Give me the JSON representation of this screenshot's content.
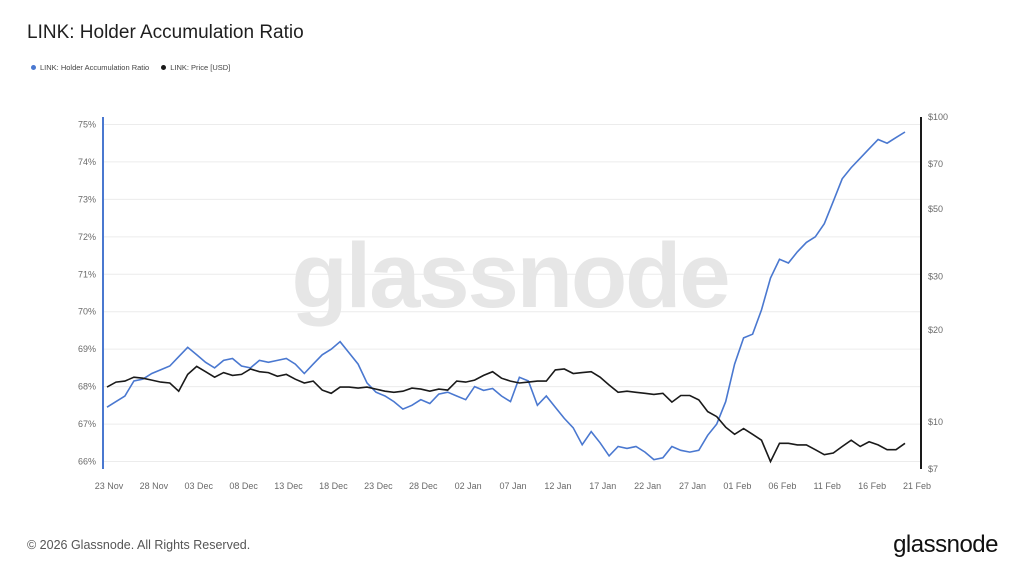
{
  "title": "LINK: Holder Accumulation Ratio",
  "footer": "© 2026 Glassnode. All Rights Reserved.",
  "brand": "glassnode",
  "watermark": "glassnode",
  "colors": {
    "ratio": "#4a78d0",
    "price": "#1a1a1a",
    "grid": "#ececec"
  },
  "chart_data": {
    "type": "line",
    "x_labels": [
      "23 Nov",
      "28 Nov",
      "03 Dec",
      "08 Dec",
      "13 Dec",
      "18 Dec",
      "23 Dec",
      "28 Dec",
      "02 Jan",
      "07 Jan",
      "12 Jan",
      "17 Jan",
      "22 Jan",
      "27 Jan",
      "01 Feb",
      "06 Feb",
      "11 Feb",
      "16 Feb",
      "21 Feb"
    ],
    "y_left": {
      "ticks": [
        "66%",
        "67%",
        "68%",
        "69%",
        "70%",
        "71%",
        "72%",
        "73%",
        "74%",
        "75%"
      ],
      "range": [
        65.8,
        75.2
      ]
    },
    "y_right": {
      "ticks": [
        "$7",
        "$10",
        "$20",
        "$30",
        "$50",
        "$70",
        "$100"
      ],
      "tick_values": [
        7,
        10,
        20,
        30,
        50,
        70,
        100
      ],
      "range": [
        7,
        100
      ],
      "scale": "log"
    },
    "series": [
      {
        "name": "LINK: Holder Accumulation Ratio",
        "axis": "left",
        "values": [
          67.45,
          67.6,
          67.75,
          68.15,
          68.2,
          68.35,
          68.45,
          68.55,
          68.8,
          69.05,
          68.85,
          68.65,
          68.5,
          68.7,
          68.75,
          68.55,
          68.5,
          68.7,
          68.65,
          68.7,
          68.75,
          68.6,
          68.35,
          68.6,
          68.85,
          69.0,
          69.2,
          68.9,
          68.6,
          68.1,
          67.85,
          67.75,
          67.6,
          67.4,
          67.5,
          67.65,
          67.55,
          67.8,
          67.85,
          67.75,
          67.65,
          68.0,
          67.9,
          67.95,
          67.75,
          67.6,
          68.25,
          68.15,
          67.5,
          67.75,
          67.45,
          67.15,
          66.9,
          66.45,
          66.8,
          66.5,
          66.15,
          66.4,
          66.35,
          66.4,
          66.25,
          66.05,
          66.1,
          66.4,
          66.3,
          66.25,
          66.3,
          66.7,
          67.0,
          67.6,
          68.6,
          69.3,
          69.4,
          70.05,
          70.9,
          71.4,
          71.3,
          71.6,
          71.85,
          72.0,
          72.35,
          72.95,
          73.55,
          73.85,
          74.1,
          74.35,
          74.6,
          74.5,
          74.65,
          74.8
        ]
      },
      {
        "name": "LINK: Price [USD]",
        "axis": "right",
        "values": [
          13.0,
          13.5,
          13.6,
          14.0,
          13.9,
          13.7,
          13.5,
          13.4,
          12.6,
          14.3,
          15.2,
          14.6,
          14.0,
          14.5,
          14.2,
          14.3,
          14.9,
          14.6,
          14.5,
          14.1,
          14.3,
          13.8,
          13.4,
          13.6,
          12.7,
          12.4,
          13.0,
          13.0,
          12.9,
          13.0,
          12.8,
          12.6,
          12.5,
          12.6,
          12.9,
          12.8,
          12.6,
          12.8,
          12.7,
          13.6,
          13.5,
          13.7,
          14.2,
          14.6,
          13.9,
          13.6,
          13.4,
          13.5,
          13.6,
          13.6,
          14.8,
          14.9,
          14.4,
          14.5,
          14.6,
          14.0,
          13.2,
          12.5,
          12.6,
          12.5,
          12.4,
          12.3,
          12.4,
          11.6,
          12.2,
          12.2,
          11.8,
          10.8,
          10.4,
          9.6,
          9.1,
          9.5,
          9.1,
          8.7,
          7.4,
          8.5,
          8.5,
          8.4,
          8.4,
          8.1,
          7.8,
          7.9,
          8.3,
          8.7,
          8.3,
          8.6,
          8.4,
          8.1,
          8.1,
          8.5
        ]
      }
    ],
    "watermark": "glassnode",
    "grid": true
  }
}
